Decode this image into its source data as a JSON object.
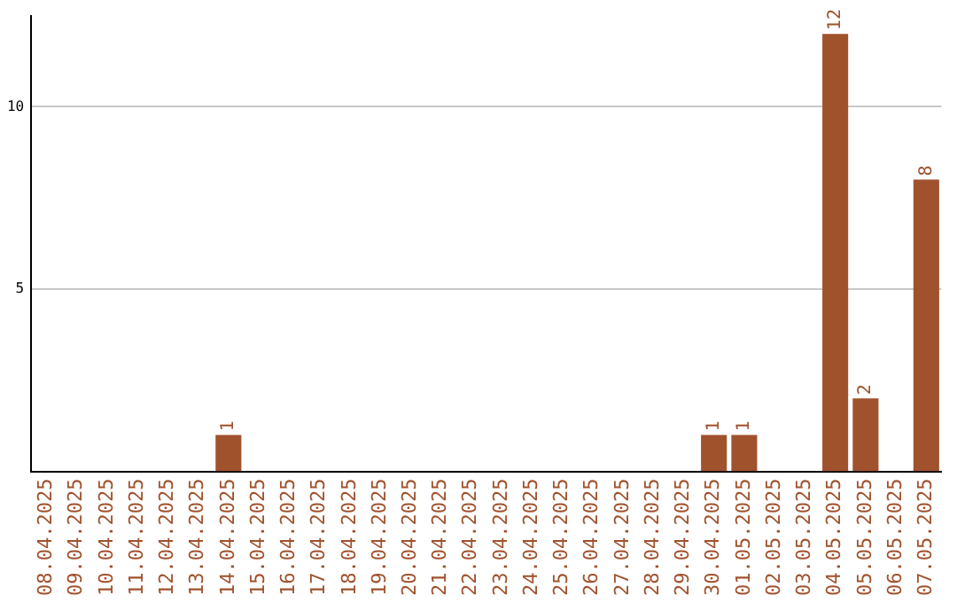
{
  "chart_data": {
    "type": "bar",
    "categories": [
      "08.04.2025",
      "09.04.2025",
      "10.04.2025",
      "11.04.2025",
      "12.04.2025",
      "13.04.2025",
      "14.04.2025",
      "15.04.2025",
      "16.04.2025",
      "17.04.2025",
      "18.04.2025",
      "19.04.2025",
      "20.04.2025",
      "21.04.2025",
      "22.04.2025",
      "23.04.2025",
      "24.04.2025",
      "25.04.2025",
      "26.04.2025",
      "27.04.2025",
      "28.04.2025",
      "29.04.2025",
      "30.04.2025",
      "01.05.2025",
      "02.05.2025",
      "03.05.2025",
      "04.05.2025",
      "05.05.2025",
      "06.05.2025",
      "07.05.2025"
    ],
    "values": [
      0,
      0,
      0,
      0,
      0,
      0,
      1,
      0,
      0,
      0,
      0,
      0,
      0,
      0,
      0,
      0,
      0,
      0,
      0,
      0,
      0,
      0,
      1,
      1,
      0,
      0,
      12,
      2,
      0,
      8
    ],
    "value_labels": [
      null,
      null,
      null,
      null,
      null,
      null,
      "1",
      null,
      null,
      null,
      null,
      null,
      null,
      null,
      null,
      null,
      null,
      null,
      null,
      null,
      null,
      null,
      "1",
      "1",
      null,
      null,
      "12",
      "2",
      null,
      "8"
    ],
    "color": "#a0522d",
    "ylim": [
      0,
      12.5
    ],
    "yticks": [
      5,
      10
    ],
    "grid": "y",
    "legend": false
  }
}
